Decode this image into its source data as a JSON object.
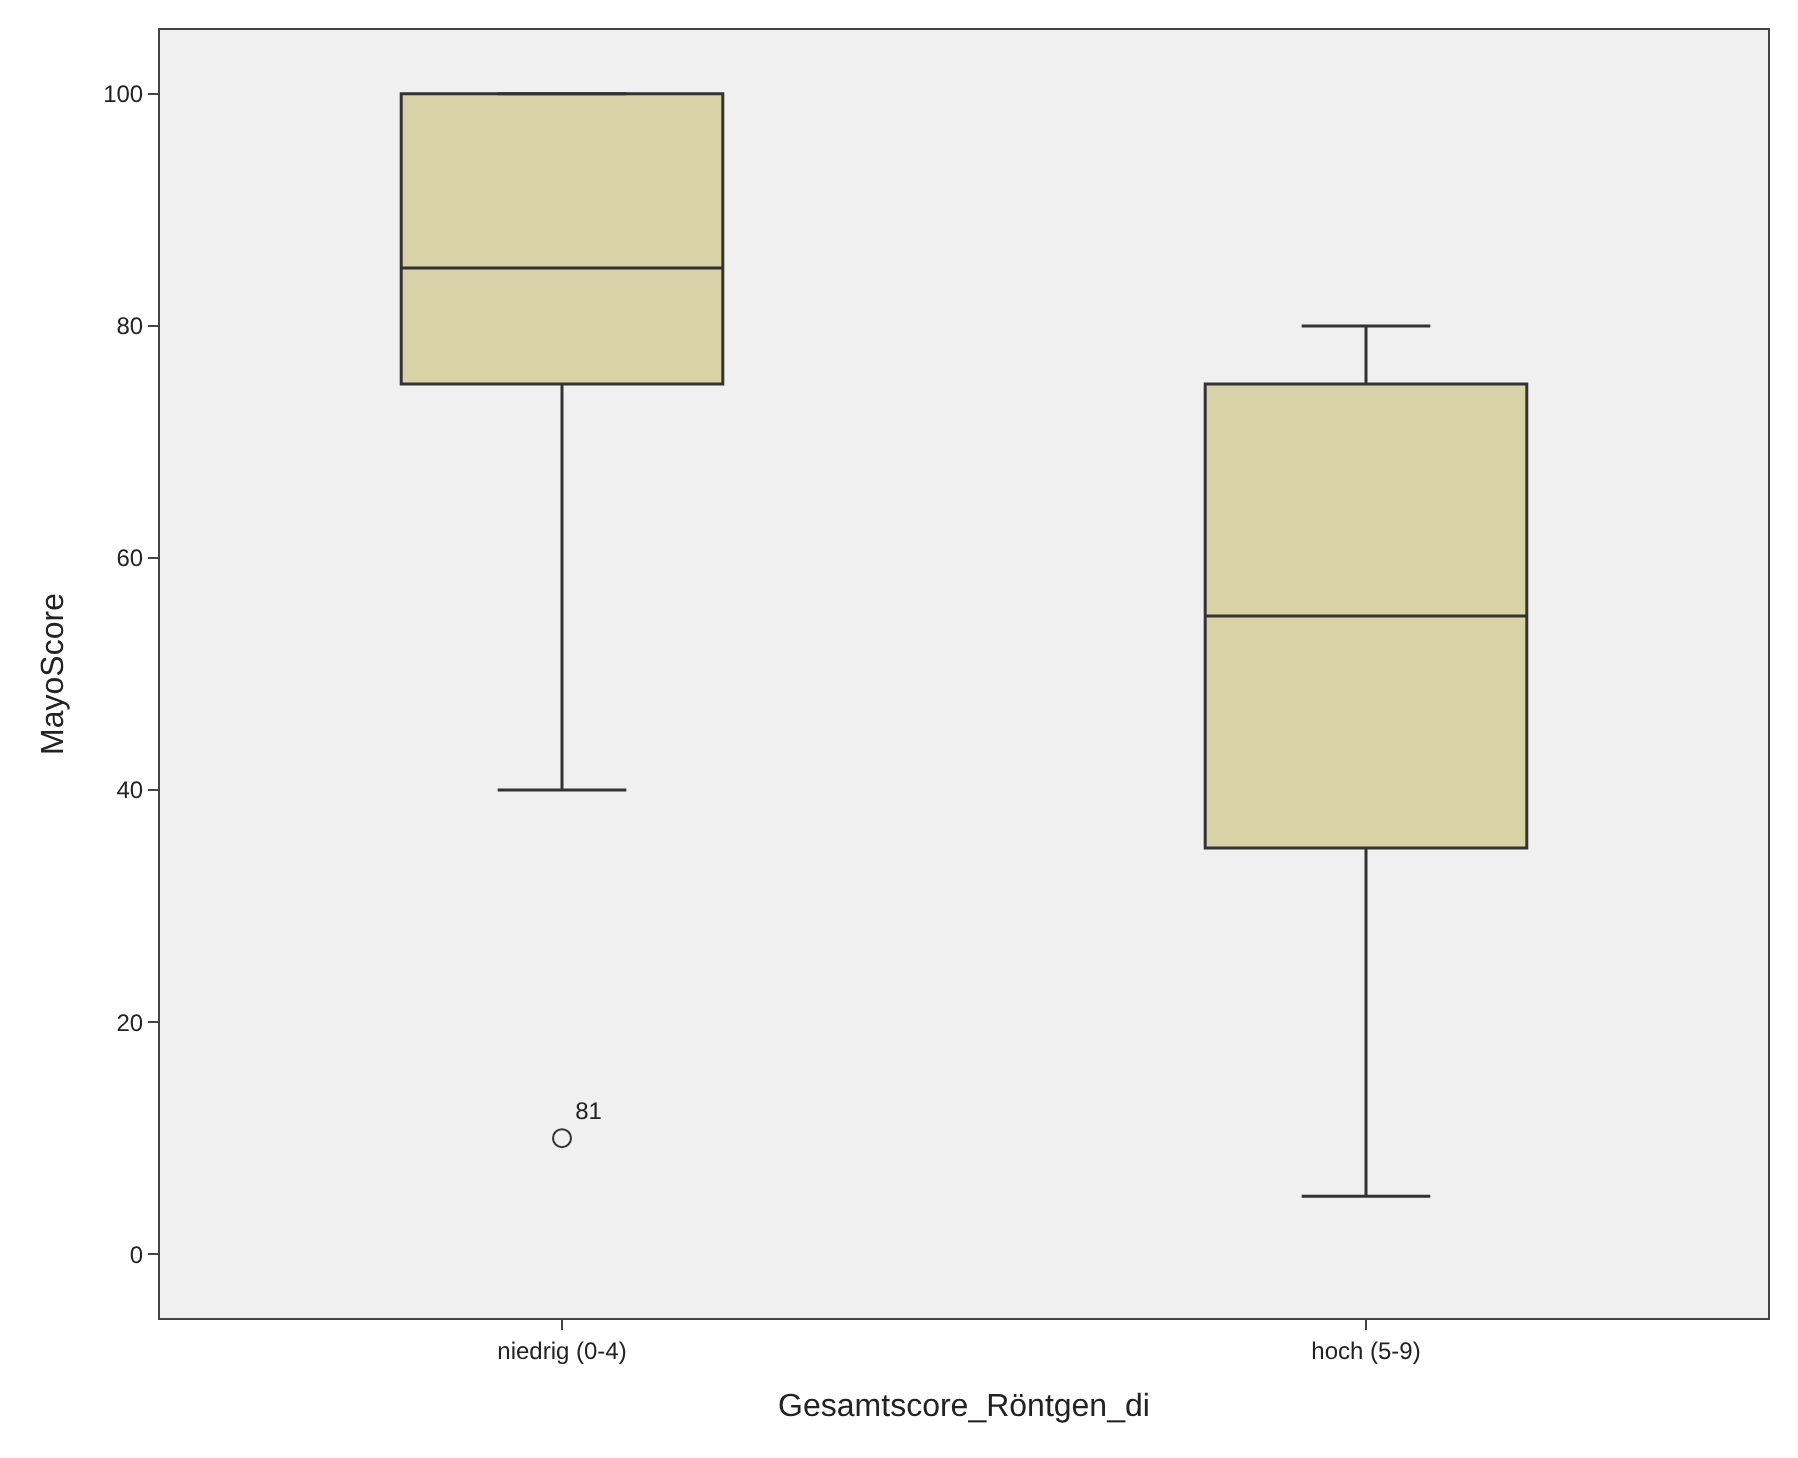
{
  "chart_data": {
    "type": "box",
    "xlabel": "Gesamtscore_Röntgen_di",
    "ylabel": "MayoScore",
    "categories": [
      "niedrig (0-4)",
      "hoch (5-9)"
    ],
    "boxes": [
      {
        "low": 40,
        "q1": 75,
        "median": 85,
        "q3": 100,
        "high": 100,
        "outliers": [
          10
        ]
      },
      {
        "low": 5,
        "q1": 35,
        "median": 55,
        "q3": 75,
        "high": 80
      }
    ],
    "color": "#d8d3a6",
    "ylim": [
      -5.5,
      105.5
    ],
    "yticks": [
      0,
      20,
      40,
      60,
      80,
      100
    ],
    "grid": false,
    "annotations": [
      "81"
    ]
  }
}
